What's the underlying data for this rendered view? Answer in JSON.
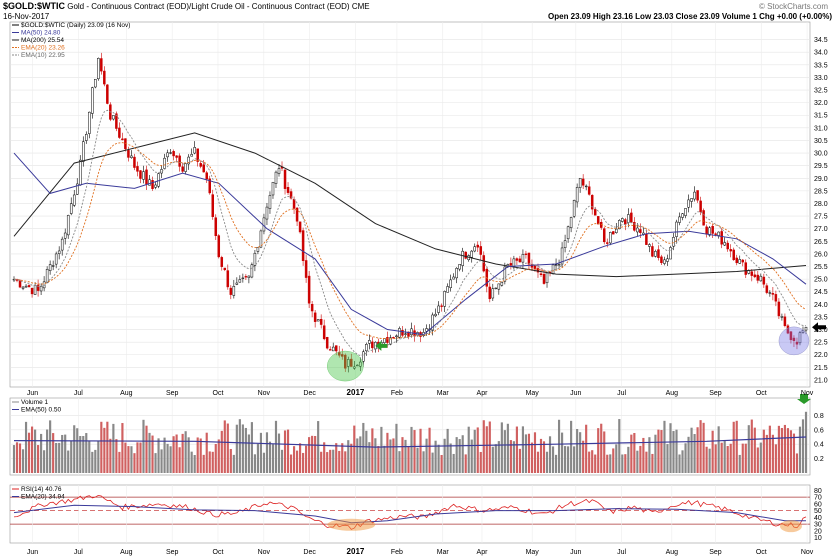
{
  "header": {
    "symbol": "$GOLD:$WTIC",
    "title": "Gold - Continuous Contract (EOD)/Light Crude Oil - Continuous Contract (EOD)",
    "exchange": "CME",
    "date": "16-Nov-2017",
    "quote": "Open 23.09  High 23.16  Low 23.03  Close 23.09  Volume 1  Chg +0.00 (+0.00%)",
    "brand": "© StockCharts.com"
  },
  "colors": {
    "up": "#000000",
    "down": "#cc0000",
    "ma50": "#3a3a9a",
    "ma200": "#222222",
    "ema20": "#e07020",
    "ema10": "#8a8a8a",
    "green": "#2a9a2a",
    "rsi": "#dd2222"
  },
  "chart_data": [
    {
      "type": "line",
      "panel": "price",
      "legend": [
        "$GOLD:$WTIC (Daily) 23.09 (16 Nov)",
        "MA(50) 24.80",
        "MA(200) 25.54",
        "EMA(20) 23.26",
        "EMA(10) 22.95"
      ],
      "x_labels": [
        "Jun",
        "Jul",
        "Aug",
        "Sep",
        "Oct",
        "Nov",
        "Dec",
        "2017",
        "Feb",
        "Mar",
        "Apr",
        "May",
        "Jun",
        "Jul",
        "Aug",
        "Sep",
        "Oct",
        "Nov"
      ],
      "y_ticks": [
        "34.5",
        "34.0",
        "33.5",
        "33.0",
        "32.5",
        "32.0",
        "31.5",
        "31.0",
        "30.5",
        "30.0",
        "29.5",
        "29.0",
        "28.5",
        "28.0",
        "27.5",
        "27.0",
        "26.5",
        "26.0",
        "25.5",
        "25.0",
        "24.5",
        "24.0",
        "23.5",
        "23.0",
        "22.5",
        "22.0",
        "21.5",
        "21.0"
      ],
      "ylim": [
        20.8,
        35.0
      ],
      "price_path": [
        [
          0,
          25.0
        ],
        [
          8,
          24.5
        ],
        [
          16,
          26.5
        ],
        [
          22,
          29.5
        ],
        [
          28,
          33.8
        ],
        [
          32,
          31.5
        ],
        [
          40,
          29.5
        ],
        [
          46,
          28.6
        ],
        [
          52,
          30.2
        ],
        [
          56,
          29.5
        ],
        [
          60,
          30.0
        ],
        [
          64,
          29.0
        ],
        [
          68,
          26.0
        ],
        [
          72,
          24.5
        ],
        [
          78,
          25.0
        ],
        [
          84,
          28.0
        ],
        [
          88,
          29.5
        ],
        [
          94,
          27.5
        ],
        [
          98,
          24.0
        ],
        [
          104,
          22.5
        ],
        [
          110,
          21.6
        ],
        [
          114,
          21.8
        ],
        [
          118,
          22.4
        ],
        [
          124,
          22.7
        ],
        [
          130,
          23.0
        ],
        [
          136,
          22.9
        ],
        [
          142,
          24.0
        ],
        [
          148,
          25.8
        ],
        [
          154,
          26.5
        ],
        [
          158,
          24.2
        ],
        [
          164,
          25.5
        ],
        [
          170,
          25.8
        ],
        [
          176,
          24.8
        ],
        [
          182,
          26.0
        ],
        [
          188,
          29.0
        ],
        [
          192,
          28.0
        ],
        [
          196,
          26.4
        ],
        [
          202,
          27.5
        ],
        [
          208,
          27.0
        ],
        [
          212,
          26.0
        ],
        [
          216,
          25.6
        ],
        [
          222,
          27.8
        ],
        [
          226,
          28.5
        ],
        [
          230,
          27.0
        ],
        [
          236,
          26.5
        ],
        [
          242,
          25.5
        ],
        [
          248,
          25.0
        ],
        [
          252,
          24.2
        ],
        [
          256,
          23.0
        ],
        [
          260,
          22.6
        ],
        [
          263,
          23.09
        ]
      ],
      "ma200": [
        [
          0,
          26.7
        ],
        [
          20,
          29.6
        ],
        [
          40,
          30.2
        ],
        [
          60,
          30.8
        ],
        [
          80,
          30.0
        ],
        [
          100,
          28.8
        ],
        [
          120,
          27.2
        ],
        [
          140,
          26.2
        ],
        [
          160,
          25.6
        ],
        [
          180,
          25.2
        ],
        [
          200,
          25.1
        ],
        [
          220,
          25.2
        ],
        [
          240,
          25.3
        ],
        [
          263,
          25.54
        ]
      ],
      "ma50": [
        [
          0,
          30.0
        ],
        [
          12,
          28.4
        ],
        [
          24,
          28.8
        ],
        [
          40,
          28.6
        ],
        [
          56,
          29.2
        ],
        [
          68,
          28.8
        ],
        [
          84,
          27.0
        ],
        [
          100,
          25.8
        ],
        [
          112,
          23.8
        ],
        [
          124,
          23.0
        ],
        [
          136,
          22.8
        ],
        [
          150,
          24.2
        ],
        [
          164,
          25.5
        ],
        [
          180,
          25.6
        ],
        [
          196,
          26.3
        ],
        [
          210,
          26.8
        ],
        [
          224,
          26.9
        ],
        [
          240,
          26.6
        ],
        [
          252,
          25.8
        ],
        [
          263,
          24.8
        ]
      ],
      "annotations": [
        {
          "type": "circle",
          "color": "green",
          "x": 110,
          "y": 21.65
        },
        {
          "type": "arrow",
          "color": "green",
          "x": 118,
          "y": 22.3,
          "direction": "left"
        },
        {
          "type": "circle",
          "color": "blue",
          "x": 259,
          "y": 22.55
        },
        {
          "type": "arrow",
          "color": "black",
          "x": 266,
          "y": 23.09,
          "direction": "left"
        },
        {
          "type": "arrow",
          "color": "green",
          "x": 264,
          "y": "volume",
          "direction": "down"
        }
      ]
    },
    {
      "type": "bar",
      "panel": "volume",
      "legend": [
        "Volume 1",
        "EMA(50) 0.50"
      ],
      "y_ticks": [
        "0.8",
        "0.6",
        "0.4",
        "0.2"
      ],
      "ylim": [
        0,
        1.0
      ],
      "ema50": [
        [
          0,
          0.45
        ],
        [
          60,
          0.44
        ],
        [
          120,
          0.36
        ],
        [
          180,
          0.4
        ],
        [
          230,
          0.44
        ],
        [
          263,
          0.5
        ]
      ]
    },
    {
      "type": "line",
      "panel": "rsi",
      "legend": [
        "RSI(14) 40.76",
        "EMA(20) 34.94"
      ],
      "y_ticks": [
        "80",
        "70",
        "60",
        "50",
        "40",
        "30",
        "20",
        "10"
      ],
      "ylim": [
        5,
        85
      ],
      "levels": [
        70,
        50,
        30
      ],
      "rsi": [
        [
          0,
          42
        ],
        [
          10,
          60
        ],
        [
          20,
          66
        ],
        [
          27,
          73
        ],
        [
          36,
          55
        ],
        [
          48,
          60
        ],
        [
          58,
          55
        ],
        [
          66,
          44
        ],
        [
          74,
          46
        ],
        [
          84,
          62
        ],
        [
          92,
          55
        ],
        [
          98,
          38
        ],
        [
          104,
          29
        ],
        [
          112,
          25
        ],
        [
          118,
          35
        ],
        [
          130,
          42
        ],
        [
          136,
          40
        ],
        [
          146,
          58
        ],
        [
          156,
          50
        ],
        [
          166,
          55
        ],
        [
          176,
          44
        ],
        [
          184,
          60
        ],
        [
          192,
          64
        ],
        [
          198,
          48
        ],
        [
          206,
          55
        ],
        [
          212,
          46
        ],
        [
          220,
          60
        ],
        [
          226,
          62
        ],
        [
          236,
          52
        ],
        [
          246,
          38
        ],
        [
          254,
          30
        ],
        [
          260,
          28
        ],
        [
          263,
          40.76
        ]
      ],
      "ema20": [
        [
          0,
          47
        ],
        [
          20,
          58
        ],
        [
          40,
          56
        ],
        [
          60,
          51
        ],
        [
          80,
          50
        ],
        [
          100,
          42
        ],
        [
          112,
          32
        ],
        [
          124,
          35
        ],
        [
          140,
          45
        ],
        [
          160,
          50
        ],
        [
          180,
          50
        ],
        [
          200,
          53
        ],
        [
          220,
          52
        ],
        [
          240,
          47
        ],
        [
          256,
          35
        ],
        [
          263,
          34.94
        ]
      ],
      "annotations": [
        {
          "type": "ellipse",
          "color": "orange",
          "x": 112,
          "y": 30
        },
        {
          "type": "ellipse",
          "color": "orange",
          "x": 258,
          "y": 27
        }
      ]
    }
  ]
}
